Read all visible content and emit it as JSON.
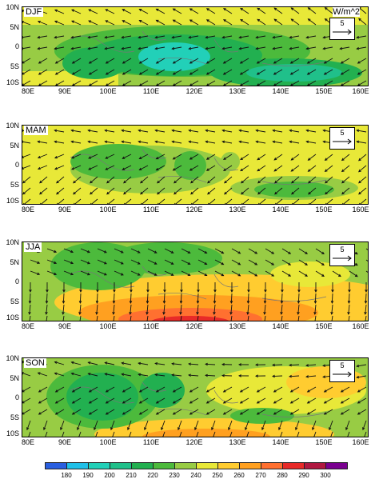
{
  "units_label": "W/m^2",
  "reference_vector": {
    "magnitude": "5"
  },
  "lat_labels": [
    "10N",
    "5N",
    "0",
    "5S",
    "10S"
  ],
  "lon_labels": [
    "80E",
    "90E",
    "100E",
    "110E",
    "120E",
    "130E",
    "140E",
    "150E",
    "160E"
  ],
  "panels": [
    {
      "season": "DJF"
    },
    {
      "season": "MAM"
    },
    {
      "season": "JJA"
    },
    {
      "season": "SON"
    }
  ],
  "colorbar": {
    "labels": [
      "180",
      "190",
      "200",
      "210",
      "220",
      "230",
      "240",
      "250",
      "260",
      "270",
      "280",
      "290",
      "300"
    ],
    "colors": [
      "#2a5fe0",
      "#20c0e8",
      "#22d0b8",
      "#20c08a",
      "#22b050",
      "#4cba3c",
      "#98cc44",
      "#e8e838",
      "#ffcc30",
      "#ffa020",
      "#ff7030",
      "#e82a28",
      "#b01840",
      "#7a0090"
    ]
  },
  "colors": {
    "frame": "#000000",
    "vector": "#111111"
  }
}
